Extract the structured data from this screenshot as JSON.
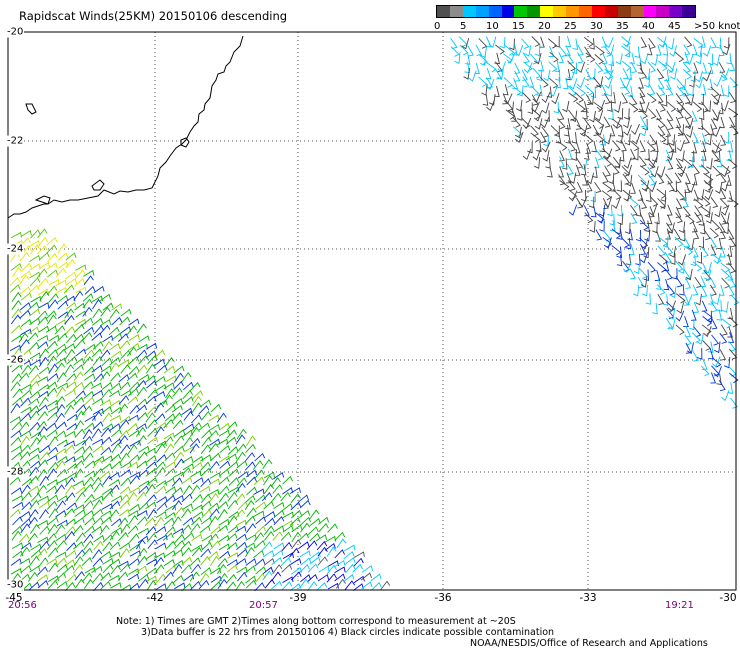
{
  "title": "Rapidscat Winds(25KM) 20150106 descending",
  "legend": {
    "labels": [
      "0",
      "5",
      "10",
      "15",
      "20",
      "25",
      "30",
      "35",
      "40",
      "45",
      ">50 knots"
    ],
    "colors": [
      "#505050",
      "#8c8c8c",
      "#00c8ff",
      "#00a0ff",
      "#0064ff",
      "#0000e6",
      "#00c800",
      "#009600",
      "#ffff00",
      "#ffc800",
      "#ff9600",
      "#ff6400",
      "#ff0000",
      "#c80000",
      "#8c3c14",
      "#b46432",
      "#ff00ff",
      "#c800c8",
      "#7800c8",
      "#3c0096"
    ]
  },
  "axes": {
    "x_ticks": [
      "-45",
      "-42",
      "-39",
      "-36",
      "-33",
      "-30"
    ],
    "y_ticks": [
      "-20",
      "-22",
      "-24",
      "-26",
      "-28",
      "-30"
    ]
  },
  "times": [
    "20:56",
    "20:57",
    "19:21"
  ],
  "notes": [
    "Note: 1) Times are GMT 2)Times along bottom correspond to measurement at ~20S",
    "3)Data buffer is 22 hrs from 20150106 4) Black circles indicate possible contamination",
    "NOAA/NESDIS/Office of Research and Applications"
  ]
}
